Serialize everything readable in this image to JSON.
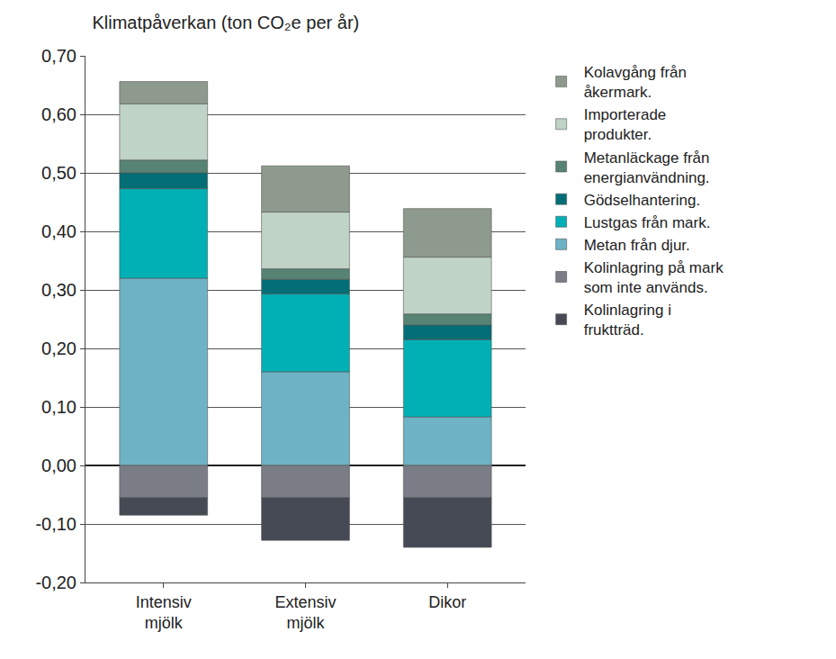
{
  "chart_data": {
    "type": "bar",
    "title": "Klimatpåverkan (ton CO₂e per år)",
    "categories": [
      "Intensiv mjölk",
      "Extensiv mjölk",
      "Dikor"
    ],
    "stacked": true,
    "grid": true,
    "legend": "right",
    "ylim": [
      -0.2,
      0.7
    ],
    "yticks": [
      {
        "value": -0.2,
        "label": "-0,20"
      },
      {
        "value": -0.1,
        "label": "-0,10"
      },
      {
        "value": 0,
        "label": "0,00"
      },
      {
        "value": 0.1,
        "label": "0,10"
      },
      {
        "value": 0.2,
        "label": "0,20"
      },
      {
        "value": 0.3,
        "label": "0,30"
      },
      {
        "value": 0.4,
        "label": "0,40"
      },
      {
        "value": 0.5,
        "label": "0,50"
      },
      {
        "value": 0.6,
        "label": "0,60"
      },
      {
        "value": 0.7,
        "label": "0,70"
      }
    ],
    "series": [
      {
        "name": "Kolavgång från åkermark.",
        "color": "#8e9a8e",
        "values": [
          0.038,
          0.079,
          0.083
        ]
      },
      {
        "name": "Importerade produkter.",
        "color": "#bfd3c6",
        "values": [
          0.096,
          0.097,
          0.097
        ]
      },
      {
        "name": "Metanläckage från energianvändning.",
        "color": "#568373",
        "values": [
          0.022,
          0.018,
          0.019
        ]
      },
      {
        "name": "Gödselhantering.",
        "color": "#036e76",
        "values": [
          0.027,
          0.025,
          0.025
        ]
      },
      {
        "name": "Lustgas från mark.",
        "color": "#00b0b5",
        "values": [
          0.153,
          0.133,
          0.132
        ]
      },
      {
        "name": "Metan från djur.",
        "color": "#6db3c5",
        "values": [
          0.32,
          0.16,
          0.083
        ]
      },
      {
        "name": "Kolinlagring på mark som inte används.",
        "color": "#7a7c86",
        "values": [
          -0.055,
          -0.055,
          -0.055
        ]
      },
      {
        "name": "Kolinlagring i fruktträd.",
        "color": "#464a55",
        "values": [
          -0.03,
          -0.073,
          -0.085
        ]
      }
    ]
  }
}
